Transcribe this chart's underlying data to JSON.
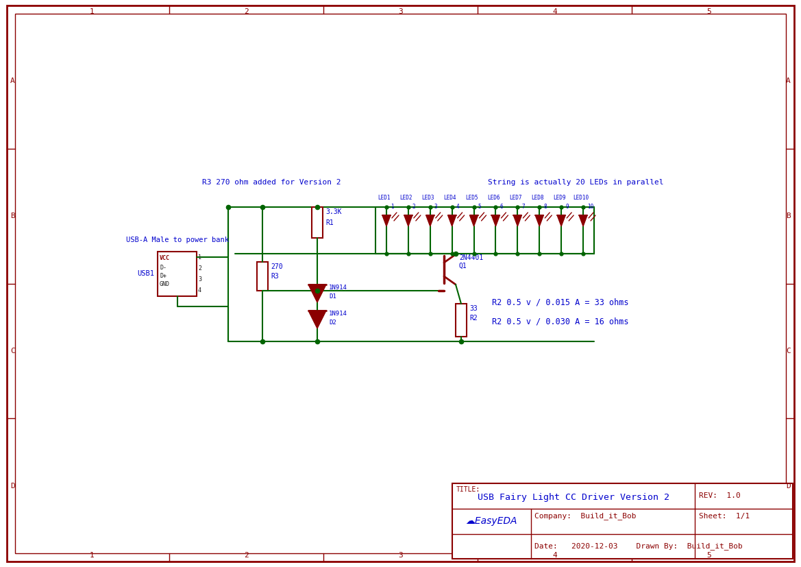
{
  "bg_color": "#ffffff",
  "border_color": "#8b0000",
  "wire_color": "#006400",
  "component_color": "#8b0000",
  "text_blue": "#0000cd",
  "text_red": "#8b0000",
  "text_black": "#1a1a1a",
  "title": "USB Fairy Light CC Driver Version 2",
  "rev": "REV:  1.0",
  "company": "Company:  Build_it_Bob",
  "sheet": "Sheet:  1/1",
  "date": "Date:   2020-12-03    Drawn By:  Build_it_Bob",
  "annotation1": "R3 270 ohm added for Version 2",
  "annotation2": "String is actually 20 LEDs in parallel",
  "annotation3": "R2 0.5 v / 0.015 A = 33 ohms",
  "annotation4": "R2 0.5 v / 0.030 A = 16 ohms",
  "usb_label": "USB-A Male to power bank",
  "usb_ref": "USB1",
  "led_labels": [
    "LED1",
    "LED2",
    "LED3",
    "LED4",
    "LED5",
    "LED6",
    "LED7",
    "LED8",
    "LED9",
    "LED10"
  ],
  "led_numbers": [
    "1",
    "2",
    "3",
    "4",
    "5",
    "6",
    "7",
    "8",
    "9",
    "10"
  ],
  "col_labels": [
    "1",
    "2",
    "3",
    "4",
    "5"
  ],
  "row_labels": [
    "A",
    "B",
    "C",
    "D"
  ]
}
